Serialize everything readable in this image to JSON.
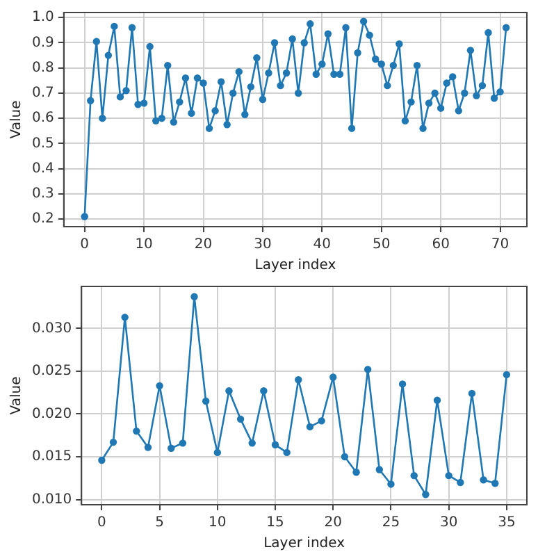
{
  "chart_data": [
    {
      "type": "line",
      "xlabel": "Layer index",
      "ylabel": "Value",
      "grid": true,
      "marker": "circle",
      "line_style": "solid",
      "legend": false,
      "x": [
        0,
        1,
        2,
        3,
        4,
        5,
        6,
        7,
        8,
        9,
        10,
        11,
        12,
        13,
        14,
        15,
        16,
        17,
        18,
        19,
        20,
        21,
        22,
        23,
        24,
        25,
        26,
        27,
        28,
        29,
        30,
        31,
        32,
        33,
        34,
        35,
        36,
        37,
        38,
        39,
        40,
        41,
        42,
        43,
        44,
        45,
        46,
        47,
        48,
        49,
        50,
        51,
        52,
        53,
        54,
        55,
        56,
        57,
        58,
        59,
        60,
        61,
        62,
        63,
        64,
        65,
        66,
        67,
        68,
        69,
        70,
        71
      ],
      "series": [
        {
          "color": "#1f77b4",
          "values": [
            0.21,
            0.67,
            0.905,
            0.6,
            0.85,
            0.965,
            0.685,
            0.71,
            0.96,
            0.655,
            0.66,
            0.885,
            0.59,
            0.6,
            0.81,
            0.585,
            0.665,
            0.76,
            0.62,
            0.76,
            0.74,
            0.56,
            0.63,
            0.745,
            0.575,
            0.7,
            0.785,
            0.615,
            0.725,
            0.84,
            0.675,
            0.78,
            0.9,
            0.73,
            0.78,
            0.915,
            0.7,
            0.9,
            0.975,
            0.775,
            0.815,
            0.935,
            0.775,
            0.775,
            0.96,
            0.56,
            0.86,
            0.985,
            0.93,
            0.835,
            0.815,
            0.73,
            0.81,
            0.895,
            0.59,
            0.665,
            0.81,
            0.56,
            0.66,
            0.7,
            0.64,
            0.74,
            0.765,
            0.63,
            0.7,
            0.87,
            0.69,
            0.73,
            0.94,
            0.68,
            0.705,
            0.96
          ]
        }
      ],
      "xlim": [
        -3.5,
        74.5
      ],
      "xticks": [
        0,
        10,
        20,
        30,
        40,
        50,
        60,
        70
      ],
      "ylim": [
        0.17,
        1.02
      ],
      "yticks": [
        {
          "value": 0.2,
          "label": "0.2"
        },
        {
          "value": 0.3,
          "label": "0.3"
        },
        {
          "value": 0.4,
          "label": "0.4"
        },
        {
          "value": 0.5,
          "label": "0.5"
        },
        {
          "value": 0.6,
          "label": "0.6"
        },
        {
          "value": 0.7,
          "label": "0.7"
        },
        {
          "value": 0.8,
          "label": "0.8"
        },
        {
          "value": 0.9,
          "label": "0.9"
        },
        {
          "value": 1.0,
          "label": "1.0"
        }
      ]
    },
    {
      "type": "line",
      "xlabel": "Layer index",
      "ylabel": "Value",
      "grid": true,
      "marker": "circle",
      "line_style": "solid",
      "legend": false,
      "x": [
        0,
        1,
        2,
        3,
        4,
        5,
        6,
        7,
        8,
        9,
        10,
        11,
        12,
        13,
        14,
        15,
        16,
        17,
        18,
        19,
        20,
        21,
        22,
        23,
        24,
        25,
        26,
        27,
        28,
        29,
        30,
        31,
        32,
        33,
        34,
        35
      ],
      "series": [
        {
          "color": "#1f77b4",
          "values": [
            0.0146,
            0.0167,
            0.0313,
            0.018,
            0.0161,
            0.0233,
            0.016,
            0.0166,
            0.0337,
            0.0215,
            0.0155,
            0.0227,
            0.0194,
            0.0166,
            0.0227,
            0.0164,
            0.0155,
            0.024,
            0.0185,
            0.0192,
            0.0243,
            0.015,
            0.0132,
            0.0252,
            0.0135,
            0.0118,
            0.0235,
            0.0128,
            0.0106,
            0.0216,
            0.0128,
            0.012,
            0.0224,
            0.0123,
            0.0119,
            0.0246
          ]
        }
      ],
      "xlim": [
        -1.75,
        36.75
      ],
      "xticks": [
        0,
        5,
        10,
        15,
        20,
        25,
        30,
        35
      ],
      "ylim": [
        0.0094,
        0.0349
      ],
      "yticks": [
        {
          "value": 0.01,
          "label": "0.010"
        },
        {
          "value": 0.015,
          "label": "0.015"
        },
        {
          "value": 0.02,
          "label": "0.020"
        },
        {
          "value": 0.025,
          "label": "0.025"
        },
        {
          "value": 0.03,
          "label": "0.030"
        }
      ]
    }
  ]
}
